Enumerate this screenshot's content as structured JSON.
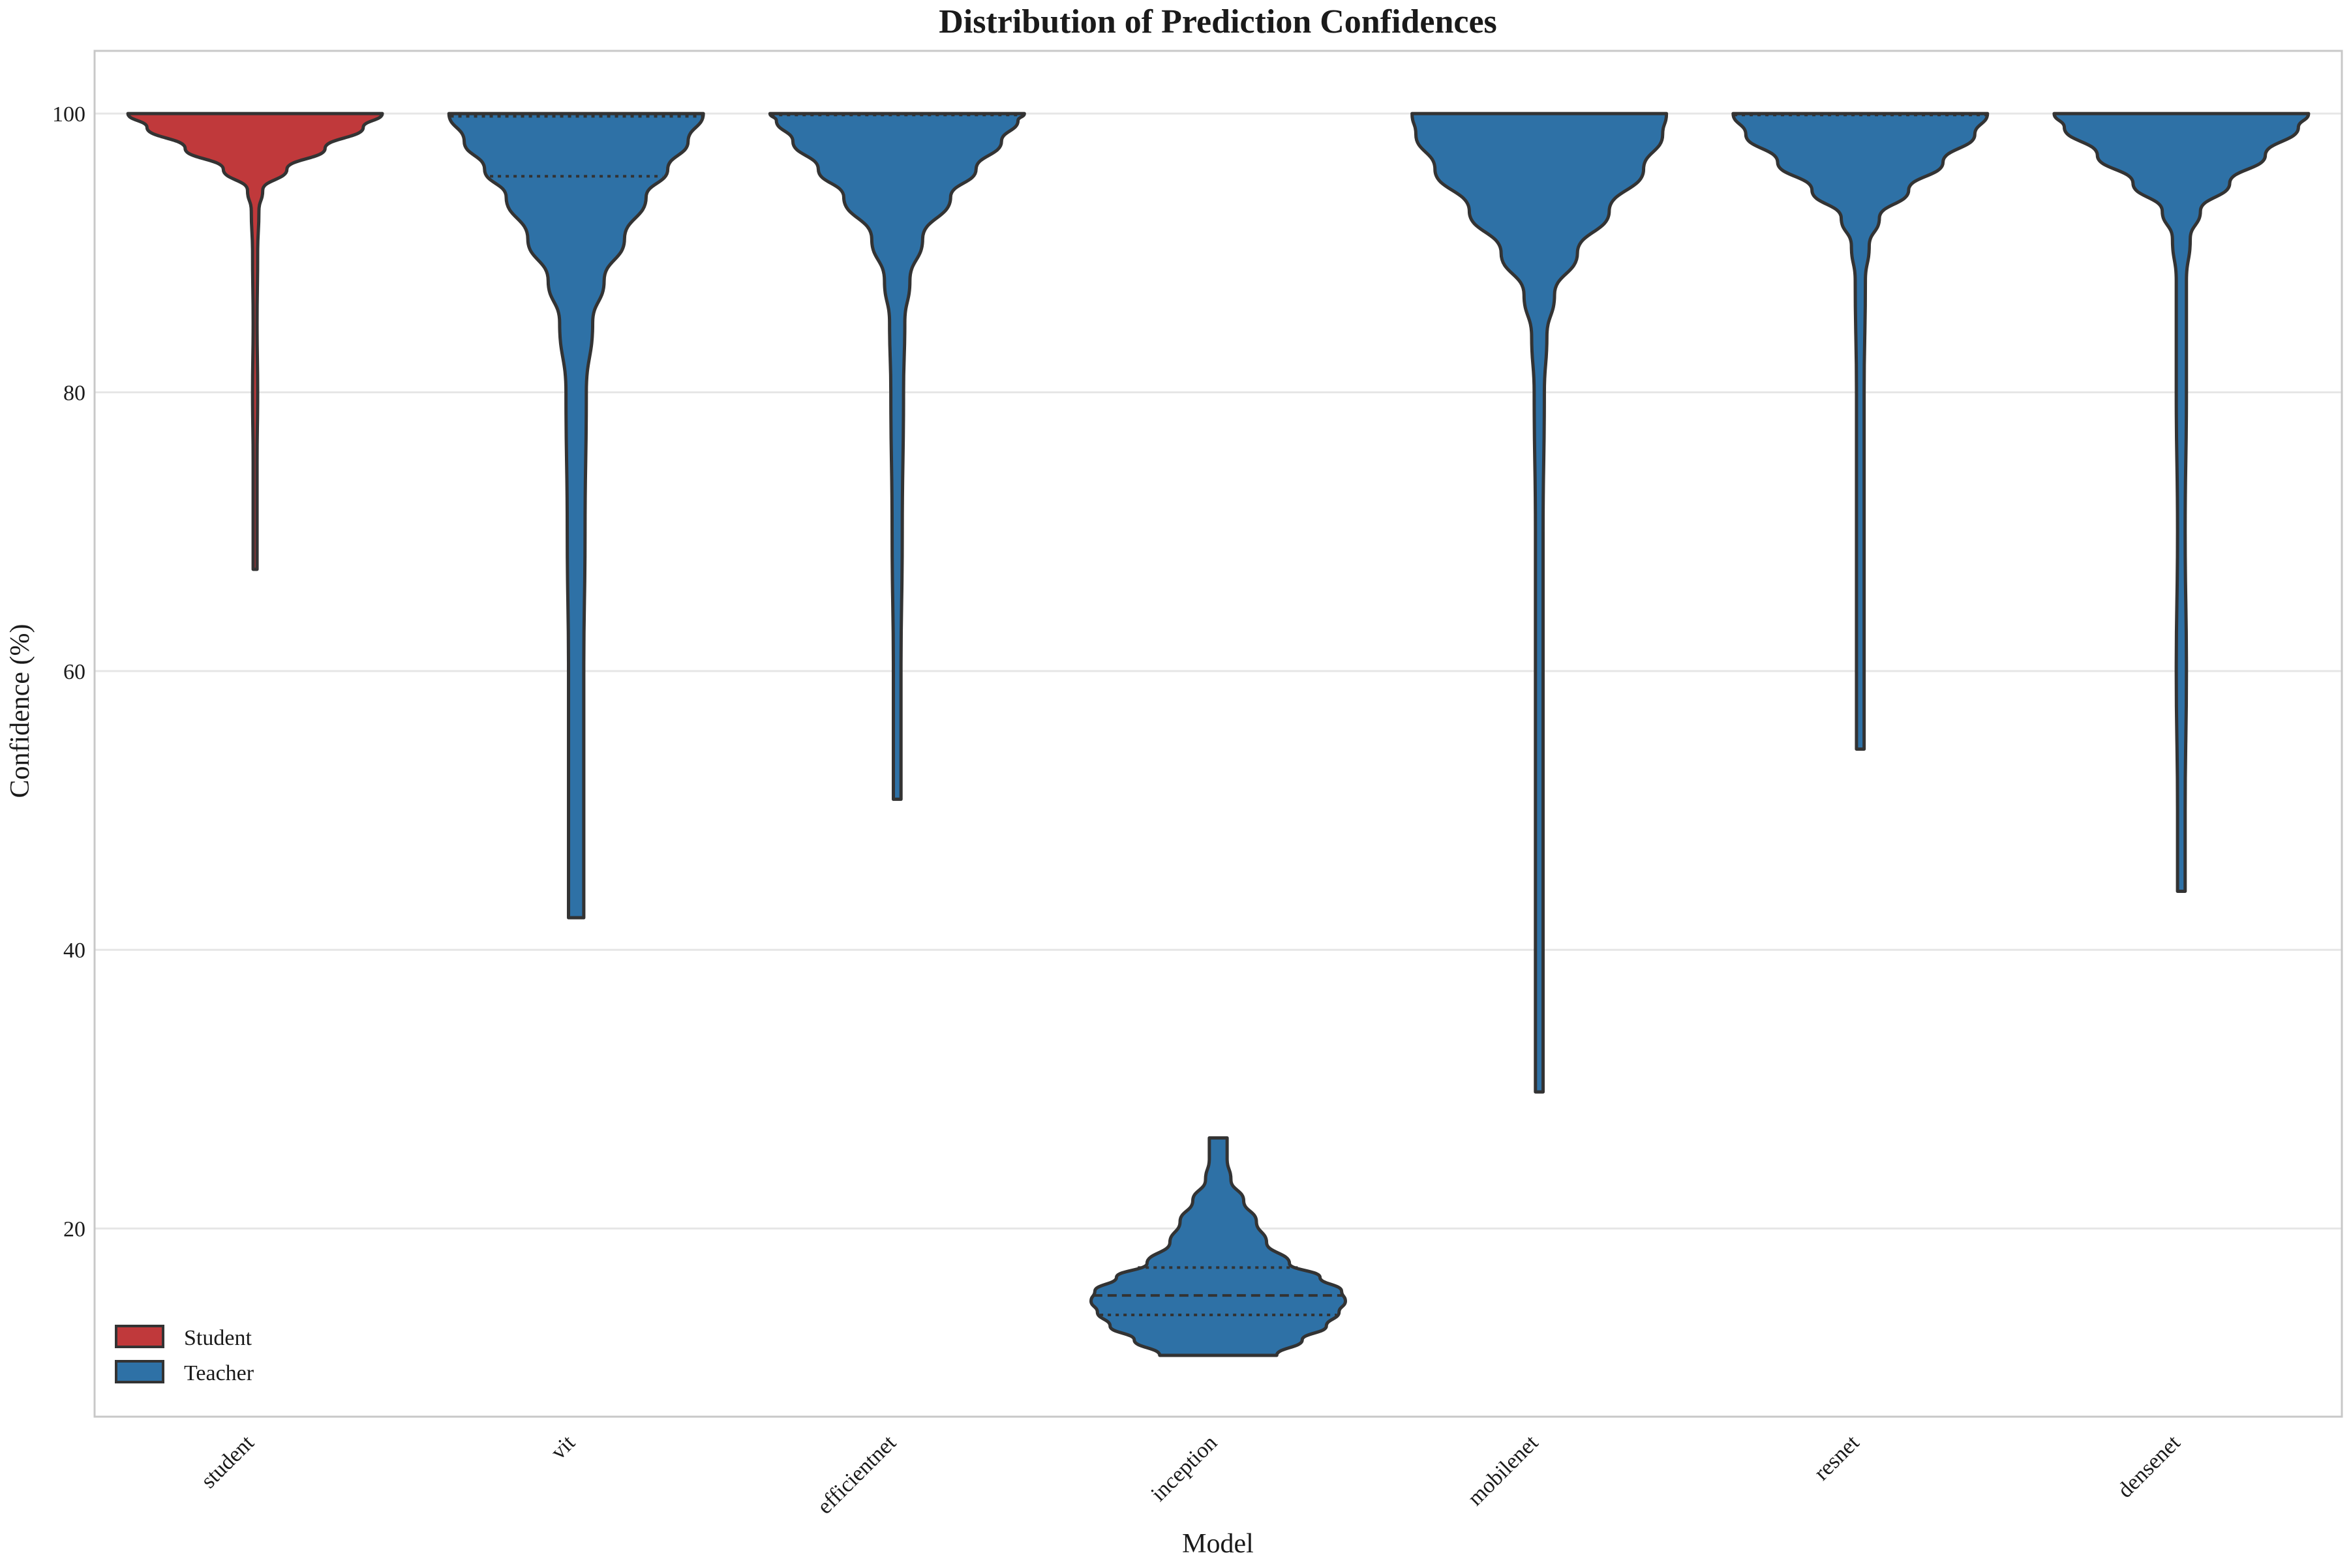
{
  "chart_data": {
    "type": "violin",
    "title": "Distribution of Prediction Confidences",
    "xlabel": "Model",
    "ylabel": "Confidence (%)",
    "ylim": [
      6.5,
      104.5
    ],
    "yticks": [
      20,
      40,
      60,
      80,
      100
    ],
    "grid": "horizontal",
    "legend": {
      "placement": "bottom-left",
      "entries": [
        {
          "label": "Student",
          "color": "#c0393b"
        },
        {
          "label": "Teacher",
          "color": "#2e71a6"
        }
      ]
    },
    "categories": [
      "student",
      "vit",
      "efficientnet",
      "inception",
      "mobilenet",
      "resnet",
      "densenet"
    ],
    "violins": [
      {
        "model": "student",
        "group": "Student",
        "min": 67.3,
        "max": 100.0,
        "quartiles": [],
        "profile": [
          [
            67.3,
            0.01
          ],
          [
            70,
            0.01
          ],
          [
            75,
            0.015
          ],
          [
            80,
            0.02
          ],
          [
            85,
            0.015
          ],
          [
            90,
            0.02
          ],
          [
            93,
            0.03
          ],
          [
            94.5,
            0.06
          ],
          [
            96,
            0.25
          ],
          [
            97.5,
            0.55
          ],
          [
            99,
            0.85
          ],
          [
            100,
            1.0
          ]
        ]
      },
      {
        "model": "vit",
        "group": "Teacher",
        "min": 42.3,
        "max": 100.0,
        "quartiles": [
          95.5,
          99.8
        ],
        "profile": [
          [
            42.3,
            0.06
          ],
          [
            50,
            0.06
          ],
          [
            60,
            0.06
          ],
          [
            70,
            0.07
          ],
          [
            80,
            0.08
          ],
          [
            85,
            0.13
          ],
          [
            88,
            0.22
          ],
          [
            91,
            0.38
          ],
          [
            94,
            0.55
          ],
          [
            96,
            0.72
          ],
          [
            98,
            0.88
          ],
          [
            100,
            1.0
          ]
        ]
      },
      {
        "model": "efficientnet",
        "group": "Teacher",
        "min": 50.8,
        "max": 100.0,
        "quartiles": [
          99.9
        ],
        "profile": [
          [
            50.8,
            0.03
          ],
          [
            60,
            0.03
          ],
          [
            70,
            0.04
          ],
          [
            80,
            0.05
          ],
          [
            85,
            0.06
          ],
          [
            88,
            0.1
          ],
          [
            91,
            0.2
          ],
          [
            94,
            0.42
          ],
          [
            96,
            0.62
          ],
          [
            98,
            0.82
          ],
          [
            99.5,
            0.95
          ],
          [
            100,
            1.0
          ]
        ]
      },
      {
        "model": "inception",
        "group": "Teacher",
        "min": 10.9,
        "max": 26.5,
        "quartiles": [
          13.8,
          15.2,
          17.2
        ],
        "profile": [
          [
            10.9,
            0.46
          ],
          [
            12,
            0.66
          ],
          [
            13,
            0.85
          ],
          [
            14,
            0.95
          ],
          [
            14.8,
            1.0
          ],
          [
            15.5,
            0.97
          ],
          [
            16.5,
            0.8
          ],
          [
            17.5,
            0.56
          ],
          [
            19,
            0.38
          ],
          [
            20.5,
            0.3
          ],
          [
            22,
            0.2
          ],
          [
            23.5,
            0.1
          ],
          [
            25,
            0.07
          ],
          [
            26.5,
            0.07
          ]
        ]
      },
      {
        "model": "mobilenet",
        "group": "Teacher",
        "min": 29.8,
        "max": 100.0,
        "quartiles": [],
        "profile": [
          [
            29.8,
            0.03
          ],
          [
            40,
            0.03
          ],
          [
            50,
            0.03
          ],
          [
            60,
            0.03
          ],
          [
            70,
            0.03
          ],
          [
            80,
            0.04
          ],
          [
            84,
            0.06
          ],
          [
            87,
            0.12
          ],
          [
            90,
            0.3
          ],
          [
            93,
            0.55
          ],
          [
            96,
            0.82
          ],
          [
            98.5,
            0.97
          ],
          [
            100,
            1.0
          ]
        ]
      },
      {
        "model": "resnet",
        "group": "Teacher",
        "min": 54.4,
        "max": 100.0,
        "quartiles": [
          99.9
        ],
        "profile": [
          [
            54.4,
            0.03
          ],
          [
            60,
            0.03
          ],
          [
            70,
            0.03
          ],
          [
            80,
            0.03
          ],
          [
            88,
            0.04
          ],
          [
            90.5,
            0.07
          ],
          [
            92.5,
            0.15
          ],
          [
            94.5,
            0.38
          ],
          [
            96.5,
            0.65
          ],
          [
            98.5,
            0.9
          ],
          [
            100,
            1.0
          ]
        ]
      },
      {
        "model": "densenet",
        "group": "Teacher",
        "min": 44.2,
        "max": 100.0,
        "quartiles": [],
        "profile": [
          [
            44.2,
            0.03
          ],
          [
            50,
            0.03
          ],
          [
            60,
            0.04
          ],
          [
            70,
            0.03
          ],
          [
            80,
            0.04
          ],
          [
            88,
            0.04
          ],
          [
            91,
            0.07
          ],
          [
            93,
            0.15
          ],
          [
            95,
            0.38
          ],
          [
            97,
            0.66
          ],
          [
            99,
            0.92
          ],
          [
            100,
            1.0
          ]
        ]
      }
    ]
  }
}
